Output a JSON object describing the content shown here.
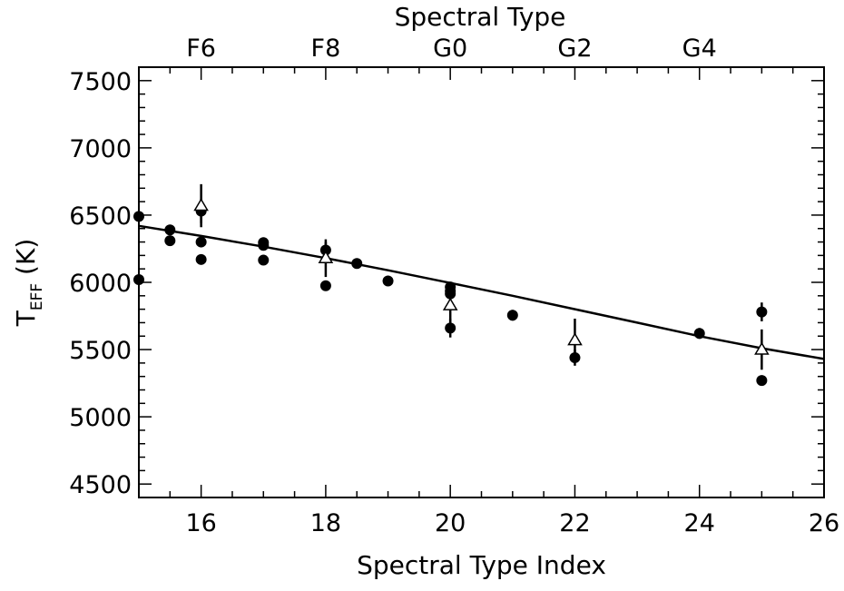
{
  "chart_data": {
    "type": "scatter",
    "title": "",
    "xlabel": "Spectral Type Index",
    "x2label": "Spectral Type",
    "ylabel": {
      "main": "T",
      "sub": "EFF",
      "unit": "(K)"
    },
    "xlim": [
      15,
      26
    ],
    "ylim": [
      4400,
      7600
    ],
    "x_ticks": [
      16,
      18,
      20,
      22,
      24,
      26
    ],
    "x_tick_labels": [
      "16",
      "18",
      "20",
      "22",
      "24",
      "26"
    ],
    "y_ticks": [
      4500,
      5000,
      5500,
      6000,
      6500,
      7000,
      7500
    ],
    "y_tick_labels": [
      "4500",
      "5000",
      "5500",
      "6000",
      "6500",
      "7000",
      "7500"
    ],
    "top_ticks": [
      {
        "x": 16,
        "label": "F6"
      },
      {
        "x": 18,
        "label": "F8"
      },
      {
        "x": 20,
        "label": "G0"
      },
      {
        "x": 22,
        "label": "G2"
      },
      {
        "x": 24,
        "label": "G4"
      }
    ],
    "grid": false,
    "series": [
      {
        "marker": "filled-circle",
        "points": [
          {
            "x": 15,
            "y": 6490
          },
          {
            "x": 15,
            "y": 6020
          },
          {
            "x": 15.5,
            "y": 6390
          },
          {
            "x": 15.5,
            "y": 6310
          },
          {
            "x": 16,
            "y": 6530
          },
          {
            "x": 16,
            "y": 6300
          },
          {
            "x": 16,
            "y": 6170
          },
          {
            "x": 17,
            "y": 6295
          },
          {
            "x": 17,
            "y": 6275
          },
          {
            "x": 17,
            "y": 6165
          },
          {
            "x": 18,
            "y": 6240
          },
          {
            "x": 18,
            "y": 5975
          },
          {
            "x": 18.5,
            "y": 6140
          },
          {
            "x": 19,
            "y": 6010
          },
          {
            "x": 20,
            "y": 5965
          },
          {
            "x": 20,
            "y": 5935
          },
          {
            "x": 20,
            "y": 5915
          },
          {
            "x": 20,
            "y": 5660
          },
          {
            "x": 21,
            "y": 5755
          },
          {
            "x": 22,
            "y": 5440
          },
          {
            "x": 24,
            "y": 5620
          },
          {
            "x": 25,
            "y": 5780
          },
          {
            "x": 25,
            "y": 5270
          }
        ],
        "error_bars": [
          {
            "x": 16,
            "y": 6530,
            "err": 90
          },
          {
            "x": 18,
            "y": 6240,
            "err": 60
          },
          {
            "x": 20,
            "y": 5660,
            "err": 70
          },
          {
            "x": 21,
            "y": 5755,
            "err": 40
          },
          {
            "x": 22,
            "y": 5440,
            "err": 60
          },
          {
            "x": 24,
            "y": 5620,
            "err": 40
          },
          {
            "x": 25,
            "y": 5780,
            "err": 70
          }
        ]
      },
      {
        "marker": "open-triangle",
        "points": [
          {
            "x": 16,
            "y": 6570,
            "err": 160
          },
          {
            "x": 18,
            "y": 6180,
            "err": 140
          },
          {
            "x": 20,
            "y": 5830,
            "err": 130
          },
          {
            "x": 22,
            "y": 5570,
            "err": 160
          },
          {
            "x": 25,
            "y": 5500,
            "err": 150
          }
        ]
      },
      {
        "marker": "line",
        "x": [
          15,
          16,
          17,
          18,
          19,
          20,
          21,
          22,
          23,
          24,
          25,
          26
        ],
        "y": [
          6420,
          6345,
          6265,
          6180,
          6090,
          5995,
          5900,
          5800,
          5700,
          5600,
          5510,
          5430
        ]
      }
    ]
  }
}
